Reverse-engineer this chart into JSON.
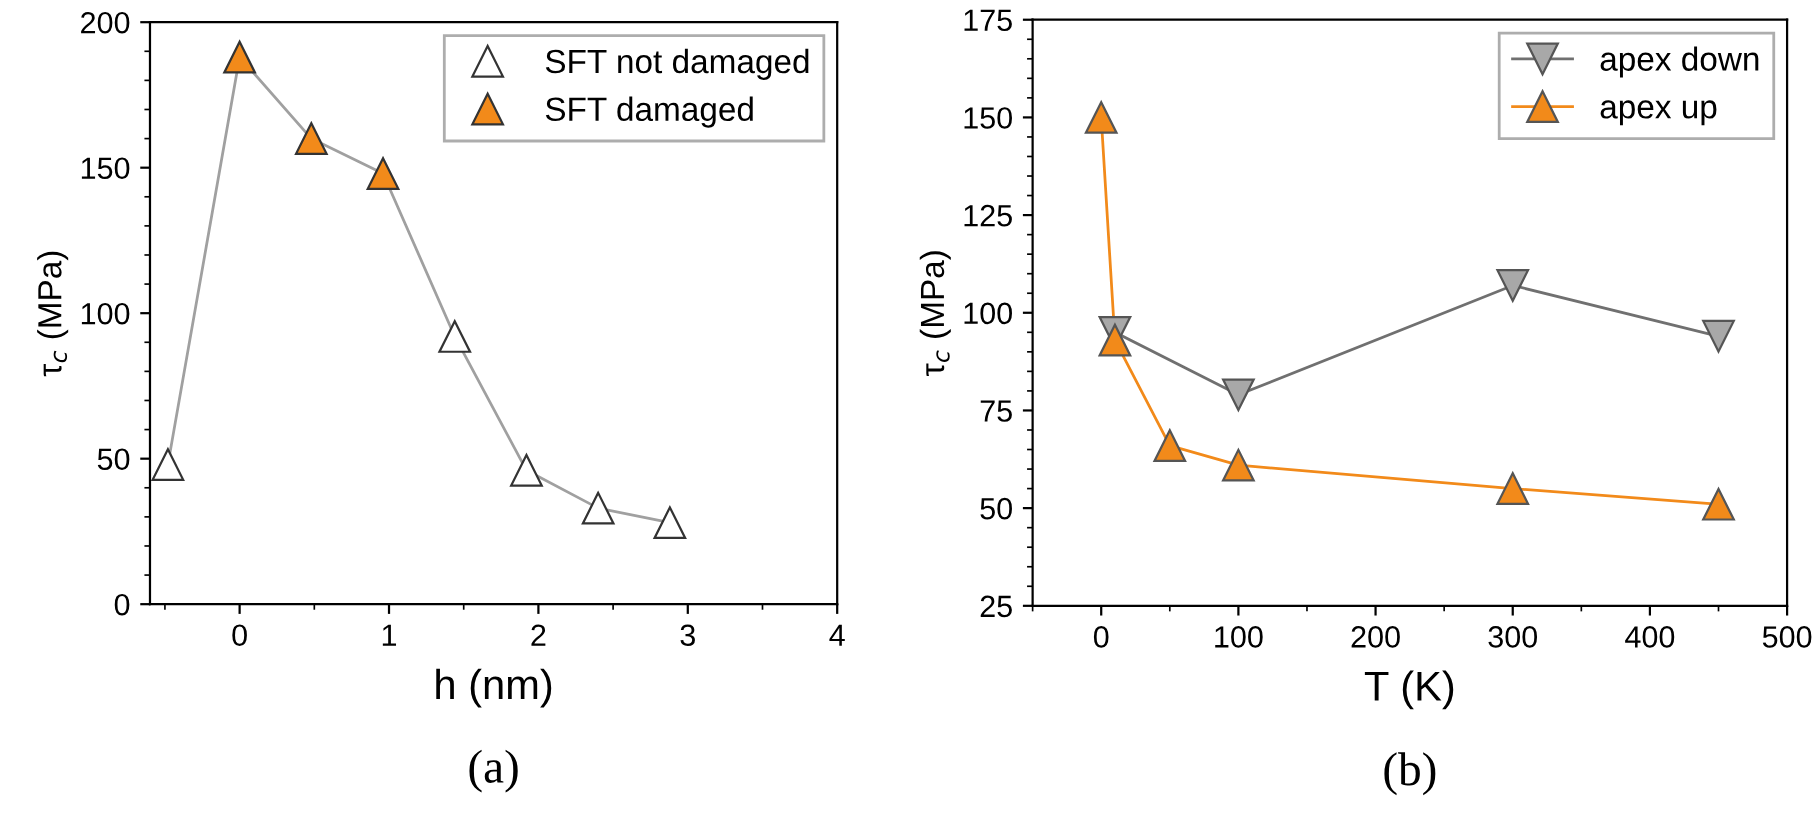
{
  "chart_data": [
    {
      "type": "scatter",
      "xlabel": "h (nm)",
      "ylabel": "τ$_{c}$ (MPa)",
      "annotations": [
        "(a)"
      ],
      "xlim": [
        -0.6,
        4
      ],
      "xticks": [
        0,
        1,
        2,
        3,
        4
      ],
      "ylim": [
        0,
        200
      ],
      "yticks": [
        0,
        50,
        100,
        150,
        200
      ],
      "grid": false,
      "legend": "top right",
      "marker": "triangle",
      "series": [
        {
          "type": "line",
          "color": "#a0a0a0",
          "marker": "none",
          "x": [
            -0.48,
            0,
            0.48,
            0.96,
            1.44,
            1.92,
            2.4,
            2.88
          ],
          "values": [
            48,
            188,
            160,
            148,
            92,
            46,
            33,
            28
          ]
        },
        {
          "name": "SFT not damaged",
          "color": "#ffffff",
          "x": [
            -0.48,
            1.44,
            1.92,
            2.4,
            2.88
          ],
          "values": [
            48,
            92,
            46,
            33,
            28
          ]
        },
        {
          "name": "SFT damaged",
          "color": "#f28a1a",
          "x": [
            0,
            0.48,
            0.96
          ],
          "values": [
            188,
            160,
            148
          ]
        }
      ]
    },
    {
      "type": "line",
      "xlabel": "T (K)",
      "ylabel": "τ$_{c}$ (MPa)",
      "annotations": [
        "(b)"
      ],
      "xlim": [
        -50,
        500
      ],
      "xticks": [
        0,
        100,
        200,
        300,
        400,
        500
      ],
      "ylim": [
        25,
        175
      ],
      "yticks": [
        25,
        50,
        75,
        100,
        125,
        150,
        175
      ],
      "grid": false,
      "legend": "top right",
      "series": [
        {
          "name": "apex down",
          "color": "#a8a8a8",
          "marker": "triangle_down",
          "x": [
            10,
            100,
            300,
            450
          ],
          "values": [
            95,
            79,
            107,
            94
          ]
        },
        {
          "name": "apex up",
          "color": "#f28a1a",
          "marker": "triangle",
          "x": [
            0,
            10,
            50,
            100,
            300,
            450
          ],
          "values": [
            150,
            93,
            66,
            61,
            55,
            51
          ]
        }
      ]
    }
  ]
}
